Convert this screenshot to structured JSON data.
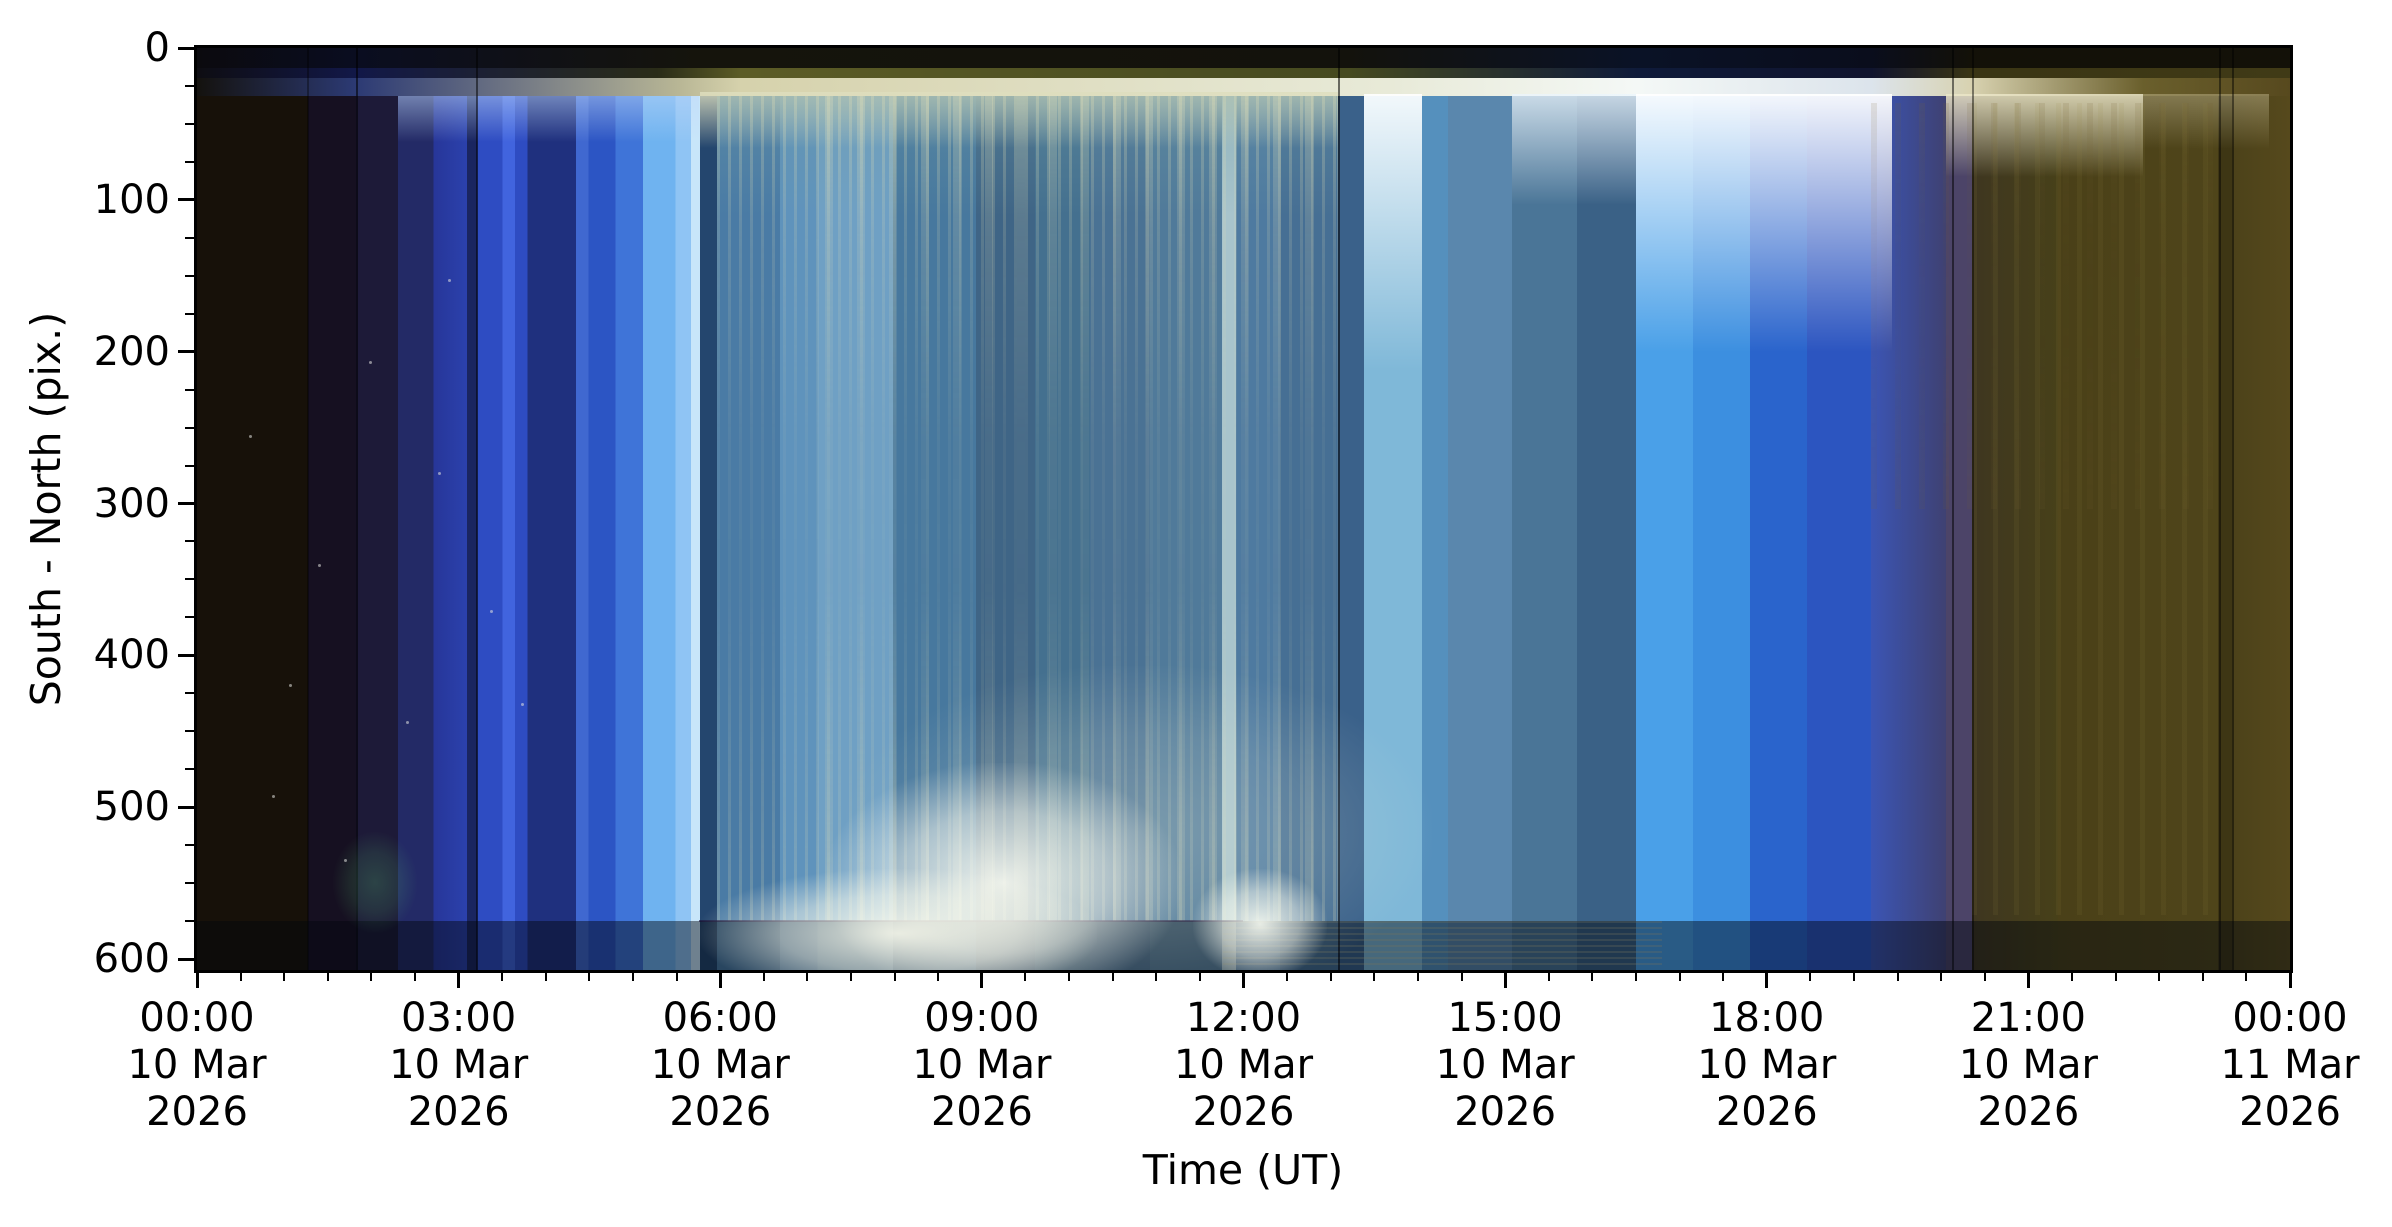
{
  "figure": {
    "xlabel": "Time (UT)",
    "ylabel": "South - North (pix.)",
    "background": "#ffffff",
    "x_tick_labels": [
      [
        "00:00",
        "10 Mar",
        "2026"
      ],
      [
        "03:00",
        "10 Mar",
        "2026"
      ],
      [
        "06:00",
        "10 Mar",
        "2026"
      ],
      [
        "09:00",
        "10 Mar",
        "2026"
      ],
      [
        "12:00",
        "10 Mar",
        "2026"
      ],
      [
        "15:00",
        "10 Mar",
        "2026"
      ],
      [
        "18:00",
        "10 Mar",
        "2026"
      ],
      [
        "21:00",
        "10 Mar",
        "2026"
      ],
      [
        "00:00",
        "11 Mar",
        "2026"
      ]
    ],
    "y_tick_labels": [
      "0",
      "100",
      "200",
      "300",
      "400",
      "500",
      "600"
    ]
  },
  "chart_data": {
    "type": "heatmap",
    "subtype": "keogram",
    "description": "24-hour all-sky camera keogram: vertical north-south image slices stacked in time. Dark night at left, blue twilight/morning bands, bright cloudy daytime cyan with white cloud streaks, blue evening bands, olive-brown night at right.",
    "xlabel": "Time (UT)",
    "ylabel": "South - North (pix.)",
    "x_range": [
      "10 Mar 2026 00:00",
      "11 Mar 2026 00:00"
    ],
    "x_major_tick_hours": 3,
    "x_minor_tick_hours": 0.5,
    "y_range": [
      0,
      607
    ],
    "y_major_tick": 100,
    "y_minor_tick": 25,
    "grid": false,
    "legend": false,
    "bands": [
      {
        "x0": 0.0,
        "x1": 0.053,
        "c0": "#171109"
      },
      {
        "x0": 0.053,
        "x1": 0.076,
        "c0": "#161021"
      },
      {
        "x0": 0.076,
        "x1": 0.096,
        "c0": "#1d1a38"
      },
      {
        "x0": 0.096,
        "x1": 0.113,
        "c0": "#232a66"
      },
      {
        "x0": 0.113,
        "x1": 0.129,
        "c0": "#273699",
        "c1": "#2b41ac"
      },
      {
        "x0": 0.129,
        "x1": 0.134,
        "c0": "#1a2560"
      },
      {
        "x0": 0.134,
        "x1": 0.146,
        "c0": "#2e4cc2"
      },
      {
        "x0": 0.146,
        "x1": 0.152,
        "c0": "#4164de"
      },
      {
        "x0": 0.152,
        "x1": 0.158,
        "c0": "#2e4cc2"
      },
      {
        "x0": 0.158,
        "x1": 0.181,
        "c0": "#1f307e"
      },
      {
        "x0": 0.181,
        "x1": 0.187,
        "c0": "#4068d0"
      },
      {
        "x0": 0.187,
        "x1": 0.2,
        "c0": "#2c55c4"
      },
      {
        "x0": 0.2,
        "x1": 0.213,
        "c0": "#3f74d8"
      },
      {
        "x0": 0.213,
        "x1": 0.2285,
        "c0": "#6fb3f0"
      },
      {
        "x0": 0.2285,
        "x1": 0.236,
        "c0": "#8fc4f4"
      },
      {
        "x0": 0.236,
        "x1": 0.2403,
        "c0": "#c8e6fa"
      },
      {
        "x0": 0.2403,
        "x1": 0.2485,
        "c0": "#24466e"
      },
      {
        "x0": 0.2485,
        "x1": 0.2786,
        "c0": "#4a7ba5"
      },
      {
        "x0": 0.2786,
        "x1": 0.2965,
        "c0": "#5f93bc"
      },
      {
        "x0": 0.2965,
        "x1": 0.3325,
        "c0": "#6fa0c4"
      },
      {
        "x0": 0.3325,
        "x1": 0.3722,
        "c0": "#47789e"
      },
      {
        "x0": 0.3722,
        "x1": 0.4004,
        "c0": "#3f6586"
      },
      {
        "x0": 0.4004,
        "x1": 0.4267,
        "c0": "#44708f"
      },
      {
        "x0": 0.4267,
        "x1": 0.4554,
        "c0": "#4a7294"
      },
      {
        "x0": 0.4554,
        "x1": 0.4898,
        "c0": "#507a9a"
      },
      {
        "x0": 0.4898,
        "x1": 0.4965,
        "c0": "#a8c4cc"
      },
      {
        "x0": 0.4965,
        "x1": 0.5175,
        "c0": "#4e7aa0"
      },
      {
        "x0": 0.5175,
        "x1": 0.5452,
        "c0": "#466f94"
      },
      {
        "x0": 0.5452,
        "x1": 0.5576,
        "c0": "#3a618a"
      },
      {
        "x0": 0.5576,
        "x1": 0.5853,
        "c0": "#7fb8d8"
      },
      {
        "x0": 0.5853,
        "x1": 0.5978,
        "c0": "#5590bd"
      },
      {
        "x0": 0.5978,
        "x1": 0.6283,
        "c0": "#5a87ad"
      },
      {
        "x0": 0.6283,
        "x1": 0.6594,
        "c0": "#4a7597"
      },
      {
        "x0": 0.6594,
        "x1": 0.6876,
        "c0": "#3a6186"
      },
      {
        "x0": 0.6876,
        "x1": 0.7148,
        "c0": "#4aa0e8"
      },
      {
        "x0": 0.7148,
        "x1": 0.7421,
        "c0": "#3c8fe0"
      },
      {
        "x0": 0.7421,
        "x1": 0.7693,
        "c0": "#2a64cc"
      },
      {
        "x0": 0.7693,
        "x1": 0.7999,
        "c0": "#2c55c0"
      },
      {
        "x0": 0.7999,
        "x1": 0.8357,
        "c0": "#3b55b4",
        "c1": "#3f4172"
      },
      {
        "x0": 0.8357,
        "x1": 0.8481,
        "c0": "#4c4468"
      },
      {
        "x0": 0.8481,
        "x1": 0.8888,
        "c0": "#3e3620",
        "c1": "#474019"
      },
      {
        "x0": 0.8888,
        "x1": 0.9657,
        "c0": "#4a4018",
        "c1": "#4f451a"
      },
      {
        "x0": 0.9657,
        "x1": 0.9724,
        "c0": "#3e3614"
      },
      {
        "x0": 0.9724,
        "x1": 1.0,
        "c0": "#4c421a",
        "c1": "#56491c"
      }
    ],
    "top_strips": [
      {
        "y0": 0.0,
        "y1": 0.022,
        "stops": [
          [
            0,
            "#0b0a0e"
          ],
          [
            0.076,
            "#0a0d20"
          ],
          [
            0.24,
            "#15140c"
          ],
          [
            0.55,
            "#13120c"
          ],
          [
            0.688,
            "#0a1226"
          ],
          [
            0.8,
            "#0a0d1c"
          ],
          [
            0.848,
            "#131108"
          ],
          [
            1,
            "#131108"
          ]
        ]
      },
      {
        "y0": 0.022,
        "y1": 0.033,
        "stops": [
          [
            0,
            "#0e0d12"
          ],
          [
            0.076,
            "#121848"
          ],
          [
            0.22,
            "#2a2c18"
          ],
          [
            0.26,
            "#5c5c26"
          ],
          [
            0.55,
            "#464a20"
          ],
          [
            0.688,
            "#0f1b3a"
          ],
          [
            0.8,
            "#10142e"
          ],
          [
            0.848,
            "#3a3514"
          ],
          [
            1,
            "#403a16"
          ]
        ]
      },
      {
        "y0": 0.033,
        "y1": 0.052,
        "stops": [
          [
            0,
            "#14120e"
          ],
          [
            0.076,
            "#2c3a74"
          ],
          [
            0.23,
            "#b8b695"
          ],
          [
            0.26,
            "#d6d2ac"
          ],
          [
            0.57,
            "#e8ead8"
          ],
          [
            0.688,
            "#f4f8f6"
          ],
          [
            0.8,
            "#dce4ec"
          ],
          [
            0.848,
            "#d8d2b0"
          ],
          [
            0.93,
            "#6a5f2c"
          ],
          [
            1,
            "#57491e"
          ]
        ]
      }
    ],
    "cloud_tops": [
      {
        "x0": 0.096,
        "x1": 0.24,
        "y0": 0.052,
        "depth": 0.05,
        "color": "190,215,248",
        "alpha": 0.5
      },
      {
        "x0": 0.2403,
        "x1": 0.5452,
        "y0": 0.048,
        "depth": 0.06,
        "color": "222,222,190",
        "alpha": 0.85
      },
      {
        "x0": 0.2485,
        "x1": 0.5452,
        "y0": 0.052,
        "depth": 0.13,
        "color": "110,155,165",
        "alpha": 0.4
      },
      {
        "x0": 0.5576,
        "x1": 0.5853,
        "y0": 0.05,
        "depth": 0.3,
        "color": "255,255,255",
        "alpha": 0.9
      },
      {
        "x0": 0.6283,
        "x1": 0.6876,
        "y0": 0.05,
        "depth": 0.12,
        "color": "235,245,252",
        "alpha": 0.8
      },
      {
        "x0": 0.6876,
        "x1": 0.81,
        "y0": 0.05,
        "depth": 0.28,
        "color": "255,255,255",
        "alpha": 0.95
      },
      {
        "x0": 0.8357,
        "x1": 0.93,
        "y0": 0.05,
        "depth": 0.09,
        "color": "235,230,200",
        "alpha": 0.85
      },
      {
        "x0": 0.93,
        "x1": 0.99,
        "y0": 0.05,
        "depth": 0.06,
        "color": "215,205,165",
        "alpha": 0.4
      }
    ],
    "streaks": [
      {
        "x0": 0.2485,
        "x1": 0.5452,
        "y0": 0.052,
        "y1": 0.947,
        "w": 3,
        "g": 8,
        "deg": 90,
        "color": "224,222,182",
        "alpha": 0.32,
        "mask": true
      },
      {
        "x0": 0.3,
        "x1": 0.5452,
        "y0": 0.052,
        "y1": 0.947,
        "w": 8,
        "g": 24,
        "deg": 90,
        "color": "228,226,188",
        "alpha": 0.3,
        "mask": true
      },
      {
        "x0": 0.8,
        "x1": 0.9657,
        "y0": 0.06,
        "y1": 0.5,
        "w": 6,
        "g": 18,
        "deg": 90,
        "color": "120,100,50",
        "alpha": 0.15,
        "mask": true
      },
      {
        "x0": 0.8481,
        "x1": 0.9657,
        "y0": 0.06,
        "y1": 0.94,
        "w": 5,
        "g": 16,
        "deg": 90,
        "color": "150,135,66",
        "alpha": 0.1,
        "mask": false
      },
      {
        "x0": 0.49,
        "x1": 0.7,
        "y0": 0.947,
        "y1": 0.998,
        "w": 2,
        "g": 4,
        "deg": 180,
        "color": "205,203,155",
        "alpha": 0.28,
        "mask": false
      }
    ],
    "seams": [
      {
        "x": 0.0526,
        "a": 0.35
      },
      {
        "x": 0.076,
        "a": 0.55
      },
      {
        "x": 0.1333,
        "a": 0.5
      },
      {
        "x": 0.5452,
        "a": 0.55
      },
      {
        "x": 0.8386,
        "a": 0.5
      },
      {
        "x": 0.8481,
        "a": 0.45
      },
      {
        "x": 0.9662,
        "a": 0.45
      },
      {
        "x": 0.9724,
        "a": 0.45
      }
    ],
    "bottom_strip": {
      "y0": 0.947,
      "overlay": "rgba(3,6,14,0.45)",
      "seam_line": {
        "x0": 0.24,
        "x1": 0.5,
        "color": "rgba(25,12,50,0.6)"
      }
    },
    "glows": [
      {
        "cx": 0.385,
        "cy": 0.905,
        "rx": 0.085,
        "ry": 0.13,
        "color": "255,255,246",
        "alpha": 0.9
      },
      {
        "cx": 0.335,
        "cy": 0.96,
        "rx": 0.095,
        "ry": 0.07,
        "color": "255,255,240",
        "alpha": 0.85
      },
      {
        "cx": 0.508,
        "cy": 0.95,
        "rx": 0.032,
        "ry": 0.06,
        "color": "252,254,244",
        "alpha": 0.9
      },
      {
        "cx": 0.45,
        "cy": 0.85,
        "rx": 0.14,
        "ry": 0.18,
        "color": "232,238,222",
        "alpha": 0.28
      },
      {
        "cx": 0.085,
        "cy": 0.905,
        "rx": 0.02,
        "ry": 0.055,
        "color": "96,214,120",
        "alpha": 0.22
      }
    ],
    "stars": [
      [
        0.025,
        0.42
      ],
      [
        0.058,
        0.56
      ],
      [
        0.044,
        0.69
      ],
      [
        0.082,
        0.34
      ],
      [
        0.1,
        0.73
      ],
      [
        0.036,
        0.81
      ],
      [
        0.115,
        0.46
      ],
      [
        0.07,
        0.88
      ],
      [
        0.14,
        0.61
      ],
      [
        0.155,
        0.71
      ],
      [
        0.12,
        0.25
      ]
    ]
  }
}
